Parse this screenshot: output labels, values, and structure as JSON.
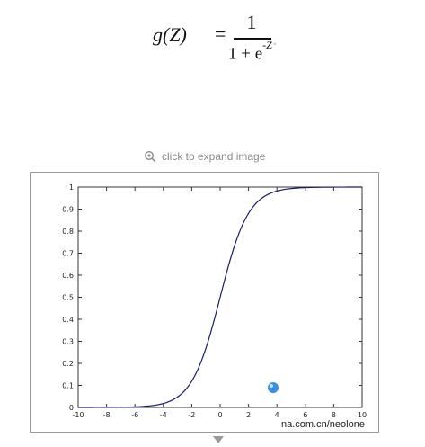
{
  "formula": {
    "lhs": "g(Z)",
    "equals": "=",
    "numerator": "1",
    "denominator_base": "1 + e",
    "exponent": "-Z",
    "trailing_mark": "◦"
  },
  "expand_link": {
    "label": "click to expand image",
    "icon": "zoom-in-icon"
  },
  "watermark": "na.com.cn/neolone",
  "colors": {
    "curve": "#1a1a6e",
    "frame": "#9a9a9a",
    "link_text": "#8a8a8a",
    "marker": "#3b8fe0"
  },
  "chart_data": {
    "type": "line",
    "title": "",
    "xlabel": "",
    "ylabel": "",
    "xlim": [
      -10,
      10
    ],
    "ylim": [
      0,
      1
    ],
    "x_ticks": [
      "-10",
      "-8",
      "-6",
      "-4",
      "-2",
      "0",
      "2",
      "4",
      "6",
      "8",
      "10"
    ],
    "y_ticks": [
      "0",
      "0.1",
      "0.2",
      "0.3",
      "0.4",
      "0.5",
      "0.6",
      "0.7",
      "0.8",
      "0.9",
      "1"
    ],
    "grid": false,
    "series": [
      {
        "x": [
          -10,
          -9,
          -8,
          -7,
          -6,
          -5,
          -4,
          -3,
          -2,
          -1,
          0,
          1,
          2,
          3,
          4,
          5,
          6,
          7,
          8,
          9,
          10
        ],
        "y": [
          0.0,
          0.0001,
          0.0003,
          0.0009,
          0.0025,
          0.0067,
          0.018,
          0.047,
          0.119,
          0.269,
          0.5,
          0.731,
          0.881,
          0.953,
          0.982,
          0.993,
          0.998,
          0.999,
          1.0,
          1.0,
          1.0
        ]
      }
    ]
  }
}
